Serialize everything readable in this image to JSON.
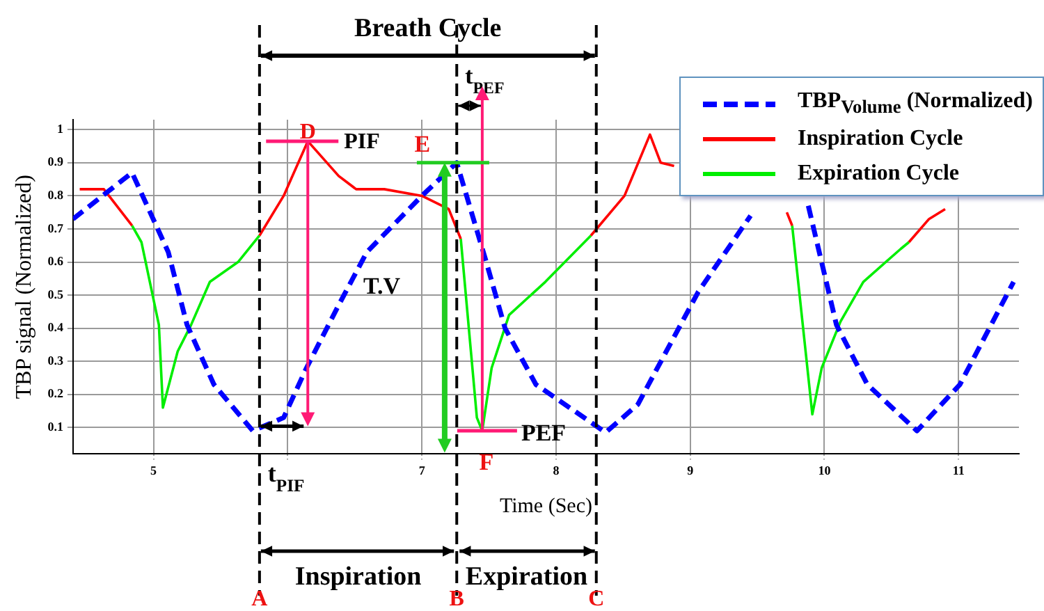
{
  "chart_data": {
    "type": "line",
    "xlabel": "Time (Sec)",
    "ylabel": "TBP signal (Normalized)",
    "xlim": [
      4.4,
      11.45
    ],
    "ylim": [
      0.02,
      1.03
    ],
    "xticks": [
      5,
      {
        "value": 6,
        "label": null
      },
      7,
      8,
      9,
      10,
      11
    ],
    "yticks": [
      0.1,
      0.2,
      0.3,
      0.4,
      0.5,
      0.6,
      0.7,
      0.8,
      0.9,
      1
    ],
    "grid": true,
    "legend": "top right",
    "marker": "none",
    "series": [
      {
        "name": "TBP$_{Volume}$ (Normalized)",
        "color": "#0000ff",
        "line_style": "dashed",
        "x": [
          4.4,
          4.84,
          5.11,
          5.25,
          5.45,
          5.74,
          5.97,
          6.14,
          6.38,
          6.59,
          7.0,
          7.26,
          7.48,
          7.62,
          7.85,
          8.37,
          8.61,
          9.06,
          9.45,
          9.7,
          9.88,
          10.09,
          10.32,
          10.69,
          11.01,
          11.41
        ],
        "values": [
          0.73,
          0.87,
          0.63,
          0.41,
          0.23,
          0.09,
          0.13,
          0.28,
          0.47,
          0.63,
          0.8,
          0.9,
          0.6,
          0.4,
          0.23,
          0.085,
          0.17,
          0.51,
          0.74,
          null,
          0.77,
          0.41,
          0.23,
          0.09,
          0.23,
          0.54
        ]
      },
      {
        "name": "Inspiration Cycle",
        "color": "#ff0000",
        "line_style": "solid",
        "x": [
          4.45,
          4.63,
          4.84,
          5.3,
          5.79,
          5.97,
          6.15,
          6.38,
          6.51,
          6.72,
          7.0,
          7.2,
          7.29,
          7.8,
          8.26,
          8.51,
          8.7,
          8.78,
          8.88,
          9.3,
          9.72,
          9.76,
          10.2,
          10.63,
          10.78,
          10.9
        ],
        "values": [
          0.82,
          0.82,
          0.71,
          null,
          0.68,
          0.8,
          0.965,
          0.86,
          0.82,
          0.82,
          0.8,
          0.76,
          0.67,
          null,
          0.68,
          0.8,
          0.985,
          0.9,
          0.89,
          null,
          0.75,
          0.71,
          null,
          0.66,
          0.73,
          0.76
        ]
      },
      {
        "name": "Expiration Cycle",
        "color": "#00ee00",
        "line_style": "solid",
        "x": [
          4.84,
          4.91,
          5.04,
          5.07,
          5.18,
          5.28,
          5.42,
          5.63,
          5.79,
          6.5,
          7.29,
          7.41,
          7.45,
          7.52,
          7.65,
          7.92,
          8.26,
          9.0,
          9.76,
          9.91,
          9.98,
          10.12,
          10.29,
          10.57,
          10.63
        ],
        "values": [
          0.71,
          0.66,
          0.41,
          0.16,
          0.33,
          0.41,
          0.54,
          0.6,
          0.68,
          null,
          0.67,
          0.13,
          0.09,
          0.28,
          0.44,
          0.54,
          0.68,
          null,
          0.71,
          0.14,
          0.28,
          0.42,
          0.54,
          0.64,
          0.66
        ]
      }
    ],
    "ref_lines": [
      {
        "axis": "x",
        "value": 5.79,
        "label": "A",
        "color": "#000000",
        "line_style": "dashed"
      },
      {
        "axis": "x",
        "value": 7.26,
        "label": "B",
        "color": "#000000",
        "line_style": "dashed"
      },
      {
        "axis": "x",
        "value": 8.3,
        "label": "C",
        "color": "#000000",
        "line_style": "dashed"
      },
      {
        "axis": "x",
        "value": 7.17,
        "color": "#22cc22"
      },
      {
        "axis": "x",
        "value": 7.45,
        "color": "#ff1a75"
      },
      {
        "axis": "x",
        "value": 6.15,
        "color": "#ff1a75"
      }
    ],
    "annotations": [
      "Breath Cycle",
      "t$_{PEF}$",
      {
        "text": "D",
        "x": 6.15,
        "y": 0.965
      },
      {
        "text": "PIF",
        "x": 6.15,
        "y": 0.965
      },
      {
        "text": "E",
        "x": 7.17,
        "y": 0.9
      },
      "T.V",
      {
        "text": "F",
        "x": 7.45,
        "y": 0.09
      },
      {
        "text": "PEF",
        "x": 7.45,
        "y": 0.09
      },
      "t$_{PIF}$",
      "Inspiration",
      "Expiration"
    ]
  }
}
